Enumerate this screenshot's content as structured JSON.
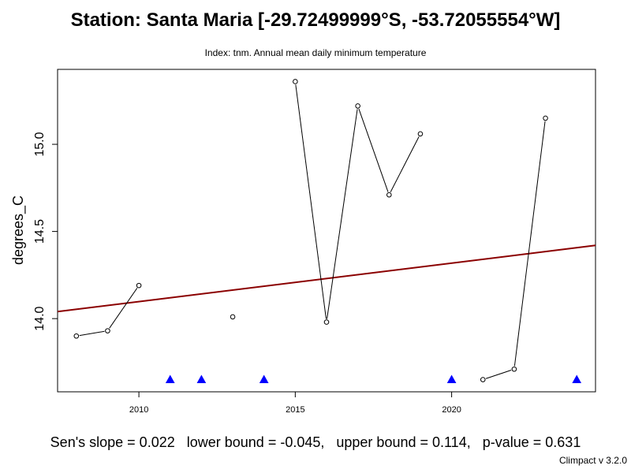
{
  "title": "Station: Santa Maria [-29.72499999°S, -53.72055554°W]",
  "subtitle": "Index: tnm. Annual mean daily minimum temperature",
  "footer": {
    "slope": "Sen's slope = 0.022",
    "lower": "lower bound = -0.045,",
    "upper": "upper bound = 0.114,",
    "pvalue": "p-value = 0.631"
  },
  "version": "Climpact v 3.2.0",
  "chart_data": {
    "type": "line",
    "title": "Station: Santa Maria [-29.72499999°S, -53.72055554°W]",
    "subtitle": "Index: tnm. Annual mean daily minimum temperature",
    "xlabel": "",
    "ylabel": "degrees_C",
    "xlim": [
      2007.4,
      2024.6
    ],
    "ylim": [
      13.58,
      15.43
    ],
    "xticks": [
      2010,
      2015,
      2020
    ],
    "yticks": [
      14.0,
      14.5,
      15.0
    ],
    "series": [
      {
        "x": [
          2008,
          2009,
          2010,
          2011,
          2012,
          2013,
          2014,
          2015,
          2016,
          2017,
          2018,
          2019,
          2020,
          2021,
          2022,
          2023,
          2024
        ],
        "values": [
          13.9,
          13.93,
          14.19,
          null,
          null,
          14.01,
          null,
          15.36,
          13.98,
          15.22,
          14.71,
          15.06,
          null,
          13.65,
          13.71,
          15.15,
          null
        ]
      }
    ],
    "missing_years": [
      2011,
      2012,
      2014,
      2020,
      2024
    ],
    "missing_marker_value": 13.65,
    "trend_line": {
      "x": [
        2007.4,
        2024.6
      ],
      "y": [
        14.04,
        14.42
      ],
      "color": "#8b0000"
    },
    "colors": {
      "line": "#000000",
      "missing_marker": "#0000ff",
      "trend": "#8b0000"
    },
    "grid": false,
    "legend": "none"
  }
}
